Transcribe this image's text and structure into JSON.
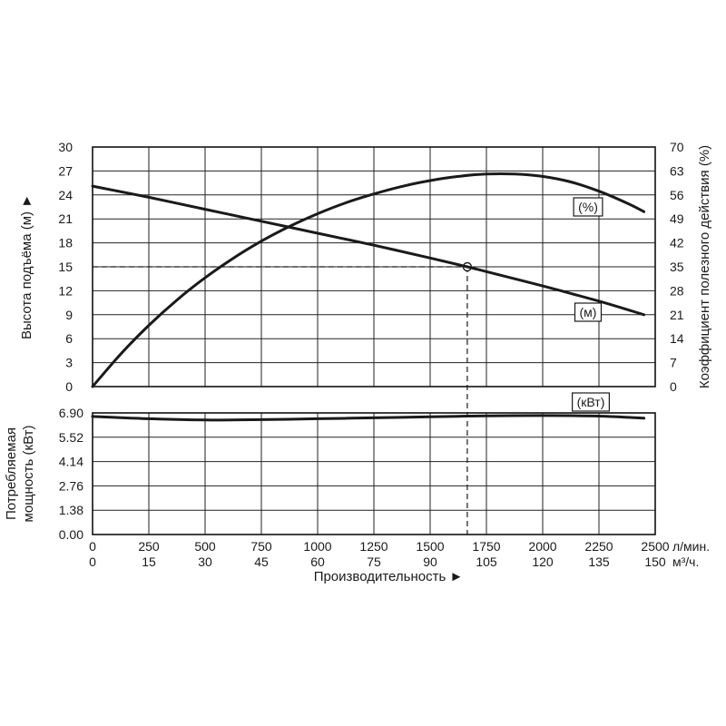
{
  "chart_data": {
    "type": "line",
    "x_axis": {
      "label": "Производительность ►",
      "primary": {
        "unit": "л/мин.",
        "ticks": [
          "0",
          "250",
          "500",
          "750",
          "1000",
          "1250",
          "1500",
          "1750",
          "2000",
          "2250",
          "2500"
        ],
        "range": [
          0,
          2500
        ]
      },
      "secondary": {
        "unit": "м³/ч.",
        "ticks": [
          "0",
          "15",
          "30",
          "45",
          "60",
          "75",
          "90",
          "105",
          "120",
          "135",
          "150"
        ],
        "range": [
          0,
          150
        ]
      }
    },
    "head_axis": {
      "label": "Высота подъёма (м) ►",
      "ticks": [
        "0",
        "3",
        "6",
        "9",
        "12",
        "15",
        "18",
        "21",
        "24",
        "27",
        "30"
      ],
      "range": [
        0,
        30
      ]
    },
    "efficiency_axis": {
      "label": "Коэффициент полезного действия (%)",
      "ticks": [
        "0",
        "7",
        "14",
        "21",
        "28",
        "35",
        "42",
        "49",
        "56",
        "63",
        "70"
      ],
      "range": [
        0,
        70
      ]
    },
    "power_axis": {
      "label_line1": "Потребляемая",
      "label_line2": "мощность (кВт)",
      "ticks": [
        "0.00",
        "1.38",
        "2.76",
        "4.14",
        "5.52",
        "6.90"
      ],
      "range": [
        0,
        6.9
      ]
    },
    "series": [
      {
        "name": "(м)",
        "axis": "head",
        "x": [
          0,
          250,
          500,
          750,
          1000,
          1250,
          1500,
          1665,
          1750,
          2000,
          2250,
          2450
        ],
        "y": [
          25.1,
          23.7,
          22.2,
          20.7,
          19.2,
          17.7,
          16.1,
          15.0,
          14.4,
          12.6,
          10.7,
          9.0
        ]
      },
      {
        "name": "(%)",
        "axis": "efficiency",
        "x": [
          0,
          125,
          250,
          375,
          500,
          625,
          750,
          875,
          1000,
          1125,
          1250,
          1375,
          1500,
          1625,
          1750,
          1875,
          2000,
          2125,
          2250,
          2375,
          2450
        ],
        "y": [
          0,
          9.5,
          17.9,
          25.3,
          31.8,
          37.5,
          42.5,
          46.8,
          50.5,
          53.7,
          56.3,
          58.5,
          60.2,
          61.4,
          62.1,
          62.1,
          61.4,
          59.8,
          57.1,
          53.6,
          51.1
        ]
      },
      {
        "name": "(кВт)",
        "axis": "power",
        "x": [
          0,
          250,
          500,
          750,
          1000,
          1250,
          1500,
          1750,
          2000,
          2250,
          2450
        ],
        "y": [
          6.7,
          6.57,
          6.5,
          6.52,
          6.57,
          6.62,
          6.68,
          6.73,
          6.75,
          6.72,
          6.6
        ]
      }
    ],
    "operating_point": {
      "x": 1665,
      "head": 15
    },
    "grid": true
  }
}
